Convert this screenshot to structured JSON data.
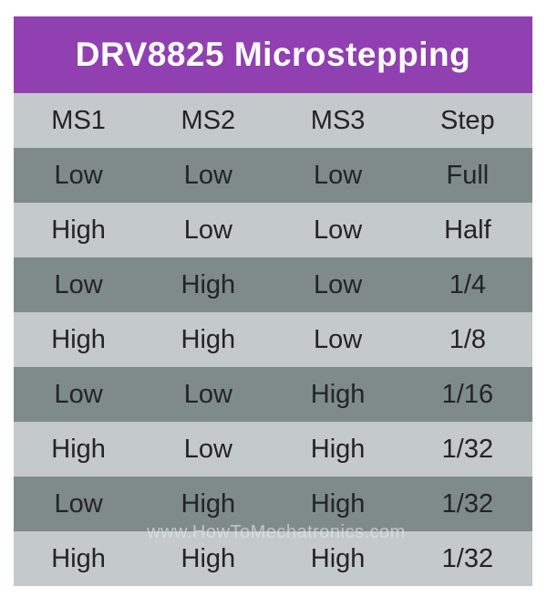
{
  "title_bar": {
    "text": "DRV8825 Microstepping"
  },
  "watermark": {
    "text": "www.HowToMechatronics.com"
  },
  "table": {
    "headers": [
      "MS1",
      "MS2",
      "MS3",
      "Step"
    ],
    "rows": [
      [
        "Low",
        "Low",
        "Low",
        "Full"
      ],
      [
        "High",
        "Low",
        "Low",
        "Half"
      ],
      [
        "Low",
        "High",
        "Low",
        "1/4"
      ],
      [
        "High",
        "High",
        "Low",
        "1/8"
      ],
      [
        "Low",
        "Low",
        "High",
        "1/16"
      ],
      [
        "High",
        "Low",
        "High",
        "1/32"
      ],
      [
        "Low",
        "High",
        "High",
        "1/32"
      ],
      [
        "High",
        "High",
        "High",
        "1/32"
      ]
    ]
  },
  "colors": {
    "page_background": "#ffffff",
    "title_background": "#9040b0",
    "title_text": "#ffffff",
    "row_dark": "#7e8b8a",
    "row_light": "#c4c9cb",
    "cell_text": "#242424"
  },
  "chart_data": {
    "type": "table",
    "title": "DRV8825 Microstepping",
    "columns": [
      "MS1",
      "MS2",
      "MS3",
      "Step"
    ],
    "rows": [
      [
        "Low",
        "Low",
        "Low",
        "Full"
      ],
      [
        "High",
        "Low",
        "Low",
        "Half"
      ],
      [
        "Low",
        "High",
        "Low",
        "1/4"
      ],
      [
        "High",
        "High",
        "Low",
        "1/8"
      ],
      [
        "Low",
        "Low",
        "High",
        "1/16"
      ],
      [
        "High",
        "Low",
        "High",
        "1/32"
      ],
      [
        "Low",
        "High",
        "High",
        "1/32"
      ],
      [
        "High",
        "High",
        "High",
        "1/32"
      ]
    ],
    "layout": {
      "header_row_shade": "light",
      "data_rows_alternate": [
        "dark",
        "light"
      ],
      "columns_aligned": "center"
    }
  }
}
